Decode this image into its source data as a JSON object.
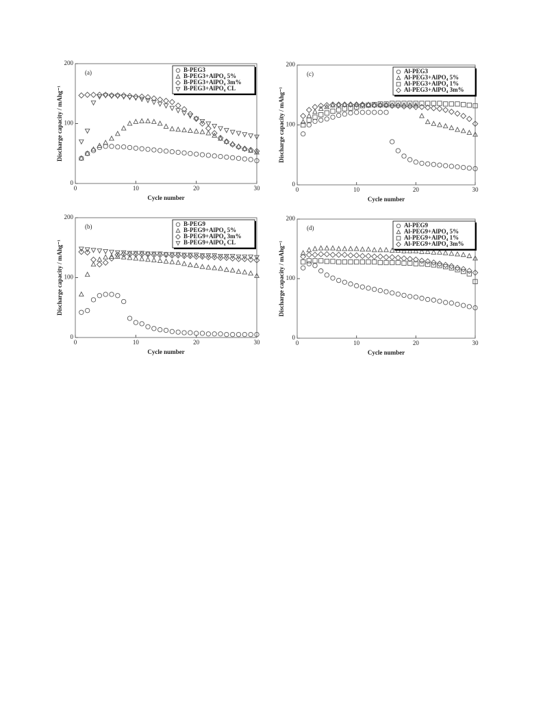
{
  "chart_data": [
    {
      "type": "scatter",
      "panel_label": "(a)",
      "xlabel": "Cycle number",
      "ylabel": "Discharge capacity / mAhg⁻¹",
      "x": [
        1,
        2,
        3,
        4,
        5,
        6,
        7,
        8,
        9,
        10,
        11,
        12,
        13,
        14,
        15,
        16,
        17,
        18,
        19,
        20,
        21,
        22,
        23,
        24,
        25,
        26,
        27,
        28,
        29,
        30
      ],
      "xlim": [
        0,
        30
      ],
      "xticks": [
        0,
        10,
        20,
        30
      ],
      "ylim": [
        0,
        200
      ],
      "yticks": [
        0,
        100,
        200
      ],
      "legend": "upper right",
      "series": [
        {
          "name": "B-PEG3",
          "marker": "circle",
          "color": "#555555",
          "values": [
            42,
            50,
            55,
            60,
            62,
            62,
            61,
            61,
            60,
            59,
            58,
            57,
            56,
            55,
            54,
            53,
            52,
            51,
            50,
            49,
            48,
            47,
            46,
            45,
            44,
            43,
            42,
            41,
            40,
            38
          ]
        },
        {
          "name": "B-PEG3+AlPO₄ 5%",
          "marker": "triangle-up",
          "color": "#555555",
          "values": [
            42,
            50,
            57,
            63,
            68,
            75,
            83,
            92,
            100,
            103,
            104,
            104,
            103,
            100,
            95,
            91,
            90,
            89,
            88,
            87,
            86,
            84,
            80,
            75,
            70,
            66,
            62,
            58,
            55,
            52
          ]
        },
        {
          "name": "B-PEG3+AlPO₄ 3m%",
          "marker": "diamond",
          "color": "#555555",
          "values": [
            147,
            148,
            148,
            148,
            148,
            147,
            147,
            147,
            146,
            145,
            145,
            144,
            142,
            140,
            138,
            136,
            130,
            124,
            116,
            108,
            100,
            92,
            84,
            76,
            70,
            65,
            61,
            58,
            56,
            54
          ]
        },
        {
          "name": "B-PEG3+AlPO₄ CL",
          "marker": "triangle-down",
          "color": "#555555",
          "values": [
            70,
            88,
            135,
            145,
            147,
            146,
            146,
            145,
            144,
            143,
            141,
            139,
            136,
            133,
            130,
            126,
            122,
            118,
            113,
            108,
            104,
            100,
            96,
            92,
            89,
            86,
            84,
            82,
            80,
            78
          ]
        }
      ]
    },
    {
      "type": "scatter",
      "panel_label": "(b)",
      "xlabel": "Cycle number",
      "ylabel": "Discharge capacity / mAhg⁻¹",
      "x": [
        1,
        2,
        3,
        4,
        5,
        6,
        7,
        8,
        9,
        10,
        11,
        12,
        13,
        14,
        15,
        16,
        17,
        18,
        19,
        20,
        21,
        22,
        23,
        24,
        25,
        26,
        27,
        28,
        29,
        30
      ],
      "xlim": [
        0,
        30
      ],
      "xticks": [
        0,
        10,
        20,
        30
      ],
      "ylim": [
        0,
        200
      ],
      "yticks": [
        0,
        100,
        200
      ],
      "legend": "upper right",
      "series": [
        {
          "name": "B-PEG9",
          "marker": "circle",
          "color": "#555555",
          "values": [
            42,
            45,
            63,
            70,
            72,
            72,
            70,
            60,
            32,
            25,
            23,
            18,
            15,
            13,
            12,
            10,
            9,
            8,
            8,
            7,
            7,
            6,
            6,
            6,
            5,
            5,
            5,
            5,
            5,
            5
          ]
        },
        {
          "name": "B-PEG9+AlPO₄ 5%",
          "marker": "triangle-up",
          "color": "#555555",
          "values": [
            72,
            105,
            122,
            130,
            134,
            135,
            135,
            134,
            133,
            132,
            131,
            130,
            129,
            128,
            127,
            126,
            125,
            123,
            121,
            120,
            118,
            117,
            116,
            115,
            113,
            112,
            110,
            109,
            107,
            103
          ]
        },
        {
          "name": "B-PEG9+AlPO₄ 3m%",
          "marker": "diamond",
          "color": "#555555",
          "values": [
            143,
            142,
            130,
            122,
            125,
            132,
            138,
            139,
            139,
            139,
            139,
            139,
            138,
            138,
            138,
            137,
            137,
            136,
            136,
            135,
            135,
            134,
            134,
            133,
            133,
            132,
            131,
            131,
            130,
            129
          ]
        },
        {
          "name": "B-PEG9+AlPO₄ CL",
          "marker": "triangle-down",
          "color": "#555555",
          "values": [
            148,
            147,
            146,
            145,
            144,
            143,
            142,
            142,
            141,
            141,
            141,
            140,
            140,
            140,
            139,
            139,
            139,
            138,
            138,
            138,
            137,
            137,
            137,
            136,
            136,
            136,
            135,
            135,
            135,
            134
          ]
        }
      ]
    },
    {
      "type": "scatter",
      "panel_label": "(c)",
      "xlabel": "Cycle number",
      "ylabel": "Discharge capacity / mAhg⁻¹",
      "x": [
        1,
        2,
        3,
        4,
        5,
        6,
        7,
        8,
        9,
        10,
        11,
        12,
        13,
        14,
        15,
        16,
        17,
        18,
        19,
        20,
        21,
        22,
        23,
        24,
        25,
        26,
        27,
        28,
        29,
        30
      ],
      "xlim": [
        0,
        30
      ],
      "xticks": [
        0,
        10,
        20,
        30
      ],
      "ylim": [
        0,
        200
      ],
      "yticks": [
        0,
        100,
        200
      ],
      "legend": "upper left",
      "series": [
        {
          "name": "Al-PEG3",
          "marker": "circle",
          "color": "#555555",
          "values": [
            85,
            100,
            106,
            108,
            110,
            113,
            116,
            118,
            120,
            121,
            121,
            121,
            121,
            121,
            121,
            72,
            57,
            48,
            42,
            38,
            36,
            35,
            34,
            33,
            32,
            31,
            30,
            29,
            28,
            27
          ]
        },
        {
          "name": "Al-PEG3+AlPO₄ 5%",
          "marker": "triangle-up",
          "color": "#555555",
          "values": [
            105,
            115,
            122,
            127,
            130,
            133,
            134,
            134,
            134,
            134,
            134,
            134,
            133,
            133,
            133,
            133,
            133,
            133,
            133,
            133,
            115,
            105,
            102,
            100,
            98,
            95,
            92,
            90,
            87,
            84
          ]
        },
        {
          "name": "Al-PEG3+AlPO₄ 1%",
          "marker": "square",
          "color": "#555555",
          "values": [
            100,
            108,
            113,
            117,
            120,
            123,
            125,
            127,
            128,
            130,
            132,
            133,
            134,
            135,
            135,
            136,
            136,
            136,
            136,
            136,
            136,
            136,
            136,
            136,
            135,
            135,
            135,
            134,
            133,
            132
          ]
        },
        {
          "name": "Al-PEG3+AlPO₄ 3m%",
          "marker": "diamond",
          "color": "#555555",
          "values": [
            115,
            125,
            130,
            132,
            133,
            134,
            134,
            134,
            134,
            134,
            134,
            133,
            133,
            133,
            133,
            132,
            132,
            131,
            131,
            130,
            130,
            129,
            128,
            127,
            125,
            122,
            119,
            115,
            110,
            102
          ]
        }
      ]
    },
    {
      "type": "scatter",
      "panel_label": "(d)",
      "xlabel": "Cycle number",
      "ylabel": "Discharge capacity / mAhg⁻¹",
      "x": [
        1,
        2,
        3,
        4,
        5,
        6,
        7,
        8,
        9,
        10,
        11,
        12,
        13,
        14,
        15,
        16,
        17,
        18,
        19,
        20,
        21,
        22,
        23,
        24,
        25,
        26,
        27,
        28,
        29,
        30
      ],
      "xlim": [
        0,
        30
      ],
      "xticks": [
        0,
        10,
        20,
        30
      ],
      "ylim": [
        0,
        200
      ],
      "yticks": [
        0,
        100,
        200
      ],
      "legend": "upper left",
      "series": [
        {
          "name": "Al-PEG9",
          "marker": "circle",
          "color": "#555555",
          "values": [
            118,
            125,
            122,
            113,
            106,
            101,
            97,
            94,
            91,
            88,
            86,
            84,
            82,
            80,
            78,
            76,
            74,
            72,
            70,
            69,
            67,
            65,
            64,
            62,
            60,
            59,
            57,
            55,
            53,
            51
          ]
        },
        {
          "name": "Al-PEG9+AlPO₄ 5%",
          "marker": "triangle-up",
          "color": "#555555",
          "values": [
            143,
            148,
            150,
            151,
            151,
            151,
            150,
            150,
            150,
            150,
            149,
            149,
            148,
            148,
            148,
            147,
            147,
            146,
            146,
            146,
            145,
            145,
            144,
            144,
            143,
            142,
            141,
            140,
            138,
            134
          ]
        },
        {
          "name": "Al-PEG9+AlPO₄ 1%",
          "marker": "square",
          "color": "#555555",
          "values": [
            128,
            130,
            130,
            130,
            129,
            129,
            128,
            128,
            128,
            128,
            128,
            128,
            128,
            127,
            127,
            127,
            127,
            126,
            126,
            125,
            125,
            124,
            123,
            122,
            120,
            118,
            115,
            112,
            108,
            95
          ]
        },
        {
          "name": "Al-PEG9+AlPO₄ 3m%",
          "marker": "diamond",
          "color": "#555555",
          "values": [
            137,
            140,
            140,
            141,
            141,
            140,
            140,
            140,
            139,
            139,
            138,
            138,
            137,
            137,
            136,
            136,
            135,
            134,
            133,
            132,
            130,
            129,
            127,
            125,
            123,
            121,
            118,
            116,
            113,
            110
          ]
        }
      ]
    }
  ]
}
